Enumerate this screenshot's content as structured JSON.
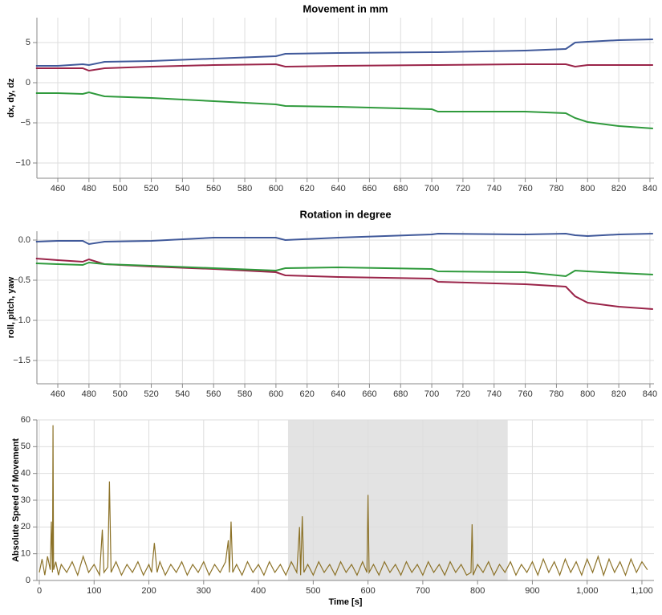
{
  "chart_data": [
    {
      "type": "line",
      "title": "Movement in mm",
      "y_label": "dx, dy, dz",
      "x": [
        446,
        460,
        476,
        480,
        490,
        520,
        560,
        600,
        606,
        640,
        700,
        704,
        760,
        786,
        792,
        800,
        820,
        842
      ],
      "series": [
        {
          "color": "#40599a",
          "values": [
            2.1,
            2.1,
            2.3,
            2.2,
            2.6,
            2.7,
            3.0,
            3.3,
            3.6,
            3.7,
            3.8,
            3.8,
            4.0,
            4.2,
            5.0,
            5.1,
            5.3,
            5.4
          ]
        },
        {
          "color": "#9a2449",
          "values": [
            1.8,
            1.8,
            1.8,
            1.5,
            1.8,
            2.0,
            2.2,
            2.3,
            2.0,
            2.1,
            2.2,
            2.2,
            2.3,
            2.3,
            2.0,
            2.2,
            2.2,
            2.2
          ]
        },
        {
          "color": "#2f9a3c",
          "values": [
            -1.3,
            -1.3,
            -1.4,
            -1.2,
            -1.7,
            -1.9,
            -2.3,
            -2.7,
            -2.9,
            -3.0,
            -3.3,
            -3.6,
            -3.6,
            -3.8,
            -4.4,
            -4.9,
            -5.4,
            -5.7
          ]
        }
      ],
      "xlim": [
        446.6,
        842.6
      ],
      "xticks": [
        460,
        480,
        500,
        520,
        540,
        560,
        580,
        600,
        620,
        640,
        660,
        680,
        700,
        720,
        740,
        760,
        780,
        800,
        820,
        840
      ],
      "ylim": [
        -11.9,
        8.1
      ],
      "yticks": [
        5,
        0,
        {
          "value": -5,
          "label": "−5"
        },
        {
          "value": -10,
          "label": "−10"
        }
      ],
      "grid": true
    },
    {
      "type": "line",
      "title": "Rotation in degree",
      "y_label": "roll, pitch, yaw",
      "x": [
        446,
        460,
        476,
        480,
        490,
        520,
        560,
        600,
        606,
        640,
        700,
        704,
        760,
        786,
        792,
        800,
        820,
        842
      ],
      "series": [
        {
          "color": "#40599a",
          "values": [
            -0.02,
            -0.01,
            -0.01,
            -0.05,
            -0.02,
            -0.01,
            0.03,
            0.03,
            0.0,
            0.03,
            0.07,
            0.08,
            0.07,
            0.08,
            0.06,
            0.05,
            0.07,
            0.08
          ]
        },
        {
          "color": "#9a2449",
          "values": [
            -0.23,
            -0.25,
            -0.27,
            -0.24,
            -0.3,
            -0.33,
            -0.36,
            -0.4,
            -0.44,
            -0.46,
            -0.48,
            -0.52,
            -0.55,
            -0.58,
            -0.7,
            -0.78,
            -0.83,
            -0.86
          ]
        },
        {
          "color": "#2f9a3c",
          "values": [
            -0.29,
            -0.3,
            -0.31,
            -0.28,
            -0.3,
            -0.32,
            -0.35,
            -0.38,
            -0.35,
            -0.34,
            -0.36,
            -0.39,
            -0.4,
            -0.45,
            -0.38,
            -0.39,
            -0.41,
            -0.43
          ]
        }
      ],
      "xlim": [
        446.6,
        842.6
      ],
      "xticks": [
        460,
        480,
        500,
        520,
        540,
        560,
        580,
        600,
        620,
        640,
        660,
        680,
        700,
        720,
        740,
        760,
        780,
        800,
        820,
        840
      ],
      "ylim": [
        -1.79,
        0.11
      ],
      "yticks": [
        {
          "value": 0,
          "label": "0.0"
        },
        {
          "value": -0.5,
          "label": "−0.5"
        },
        {
          "value": -1.0,
          "label": "−1.0"
        },
        {
          "value": -1.5,
          "label": "−1.5"
        }
      ],
      "grid": true
    },
    {
      "type": "line",
      "x_label": "Time [s]",
      "y_label": "Absolute Speed of Movement",
      "x": [
        0,
        5,
        10,
        15,
        20,
        22,
        24,
        25,
        26,
        30,
        35,
        40,
        50,
        60,
        70,
        80,
        90,
        100,
        110,
        115,
        118,
        125,
        128,
        131,
        140,
        150,
        160,
        170,
        180,
        190,
        200,
        205,
        210,
        215,
        220,
        230,
        240,
        250,
        260,
        270,
        280,
        290,
        300,
        310,
        320,
        330,
        340,
        345,
        347,
        350,
        353,
        360,
        370,
        380,
        390,
        400,
        410,
        420,
        430,
        440,
        450,
        460,
        470,
        475,
        477,
        480,
        483,
        490,
        500,
        510,
        520,
        530,
        540,
        550,
        560,
        570,
        580,
        590,
        598,
        600,
        602,
        610,
        620,
        630,
        640,
        650,
        660,
        670,
        680,
        690,
        700,
        710,
        720,
        730,
        740,
        750,
        760,
        770,
        780,
        788,
        790,
        792,
        800,
        810,
        820,
        830,
        840,
        850,
        860,
        870,
        880,
        890,
        900,
        910,
        920,
        930,
        940,
        950,
        960,
        970,
        980,
        990,
        1000,
        1010,
        1020,
        1030,
        1040,
        1050,
        1060,
        1070,
        1080,
        1090,
        1100,
        1110
      ],
      "series": [
        {
          "color": "#8c7228",
          "values": [
            3,
            8,
            2,
            9,
            4,
            22,
            3,
            58,
            4,
            7,
            2,
            6,
            3,
            7,
            2,
            9,
            3,
            6,
            2,
            19,
            3,
            5,
            37,
            3,
            7,
            2,
            6,
            3,
            7,
            2,
            6,
            3,
            14,
            3,
            7,
            2,
            6,
            3,
            7,
            2,
            6,
            3,
            7,
            2,
            6,
            3,
            7,
            15,
            3,
            22,
            3,
            6,
            2,
            7,
            3,
            6,
            2,
            7,
            3,
            6,
            2,
            7,
            3,
            20,
            2,
            24,
            3,
            6,
            2,
            7,
            3,
            6,
            2,
            7,
            3,
            6,
            2,
            7,
            3,
            32,
            3,
            6,
            2,
            7,
            3,
            6,
            2,
            7,
            3,
            6,
            2,
            7,
            3,
            6,
            2,
            7,
            3,
            6,
            2,
            3,
            21,
            2,
            6,
            3,
            7,
            2,
            6,
            3,
            7,
            2,
            6,
            3,
            7,
            2,
            8,
            3,
            7,
            2,
            8,
            3,
            7,
            2,
            8,
            3,
            9,
            2,
            8,
            3,
            7,
            2,
            8,
            3,
            7,
            4
          ]
        }
      ],
      "highlight": [
        454,
        855
      ],
      "xlim": [
        -4.4,
        1122
      ],
      "xticks": [
        0,
        100,
        200,
        300,
        400,
        500,
        600,
        700,
        800,
        900,
        {
          "value": 1000,
          "label": "1,000"
        },
        {
          "value": 1100,
          "label": "1,100"
        }
      ],
      "ylim": [
        0,
        60
      ],
      "yticks": [
        0,
        10,
        20,
        30,
        40,
        50,
        60
      ],
      "grid": true
    }
  ]
}
